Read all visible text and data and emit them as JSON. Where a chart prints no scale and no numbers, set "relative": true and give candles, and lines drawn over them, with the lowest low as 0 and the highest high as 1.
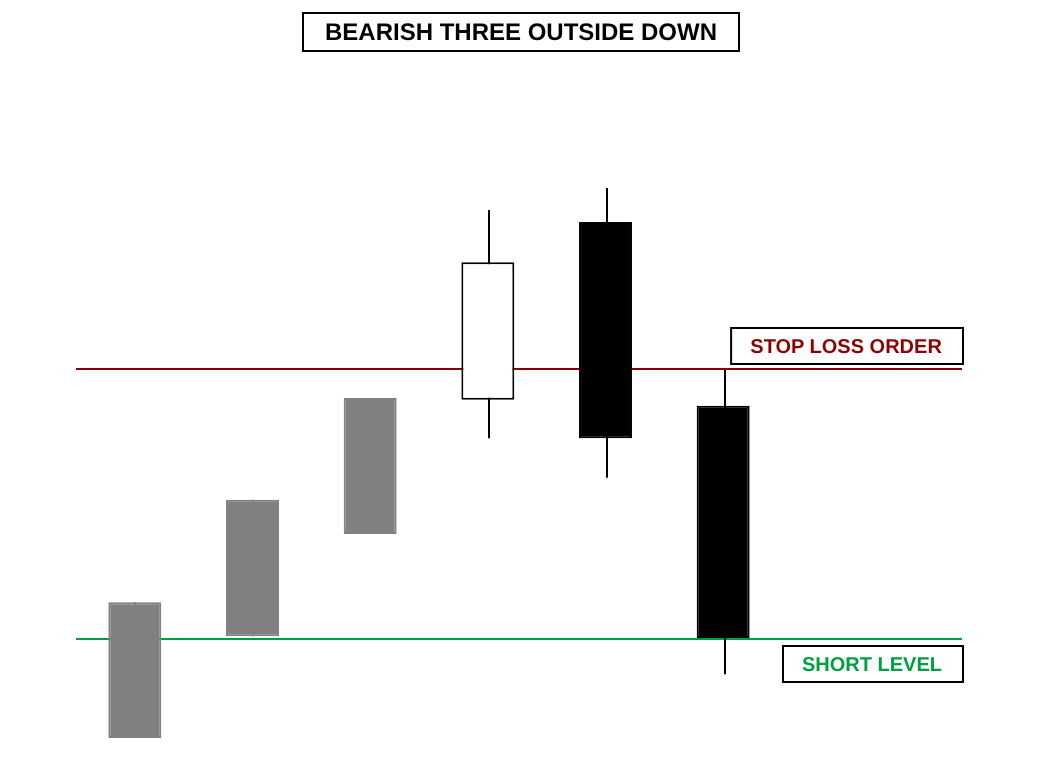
{
  "chart_data": {
    "type": "candlestick",
    "title": "BEARISH THREE OUTSIDE DOWN",
    "relative": true,
    "categories": [
      null,
      null,
      null,
      null,
      null,
      null
    ],
    "series": [
      {
        "color": "#808080",
        "ohlc": [
          [
            0,
            0.247,
            0,
            0.247
          ],
          [
            0.185,
            0.433,
            0.185,
            0.433
          ],
          [
            0.371,
            0.618,
            0.371,
            0.618
          ],
          null,
          null,
          null
        ]
      },
      {
        "ohlc": [
          null,
          null,
          null,
          [
            0.615,
            0.96,
            0.545,
            0.865
          ],
          null,
          null
        ]
      },
      {
        "color": "#000000",
        "ohlc": [
          null,
          null,
          null,
          null,
          [
            0.938,
            1,
            0.473,
            0.545
          ],
          [
            0.604,
            0.669,
            0.116,
            0.182
          ]
        ]
      }
    ],
    "ref_lines": [
      {
        "axis": "y",
        "value": 0.673,
        "label": "STOP LOSS ORDER",
        "color": "#8b0000"
      },
      {
        "axis": "y",
        "value": 0.182,
        "label": "SHORT LEVEL",
        "color": "#00a040"
      }
    ],
    "legend": false
  }
}
